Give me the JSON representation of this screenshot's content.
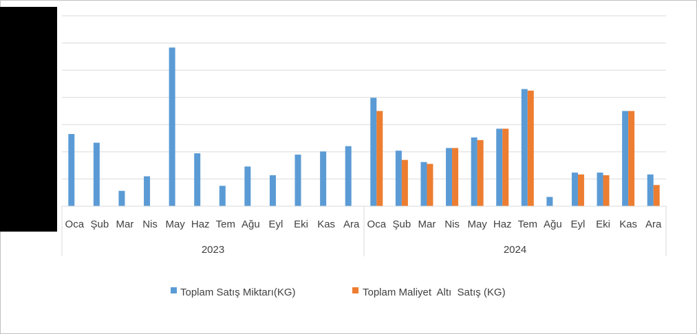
{
  "chart_data": {
    "type": "bar",
    "title": "",
    "xlabel": "",
    "ylabel": "",
    "ylim": [
      0,
      7.2
    ],
    "grid": true,
    "legend_position": "bottom",
    "groups": [
      {
        "label": "2023",
        "months": [
          "Oca",
          "Şub",
          "Mar",
          "Nis",
          "May",
          "Haz",
          "Tem",
          "Ağu",
          "Eyl",
          "Eki",
          "Kas",
          "Ara"
        ]
      },
      {
        "label": "2024",
        "months": [
          "Oca",
          "Şub",
          "Mar",
          "Nis",
          "May",
          "Haz",
          "Tem",
          "Ağu",
          "Eyl",
          "Eki",
          "Kas",
          "Ara"
        ]
      }
    ],
    "series": [
      {
        "name": "Toplam Satış Miktarı(KG)",
        "color": "#5b9bd5",
        "values": [
          2.73,
          2.4,
          0.58,
          1.13,
          6.0,
          2.0,
          0.77,
          1.5,
          1.17,
          1.95,
          2.07,
          2.27,
          4.1,
          2.1,
          1.67,
          2.2,
          2.6,
          2.93,
          4.43,
          0.35,
          1.27,
          1.27,
          3.6,
          1.2
        ]
      },
      {
        "name": "Toplam Maliyet  Altı  Satış (KG)",
        "color": "#ed7d31",
        "values": [
          null,
          null,
          null,
          null,
          null,
          null,
          null,
          null,
          null,
          null,
          null,
          null,
          3.6,
          1.75,
          1.6,
          2.2,
          2.5,
          2.93,
          4.37,
          null,
          1.2,
          1.17,
          3.6,
          0.8
        ]
      }
    ]
  }
}
